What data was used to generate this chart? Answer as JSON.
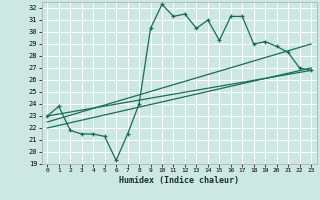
{
  "title": "",
  "xlabel": "Humidex (Indice chaleur)",
  "ylabel": "",
  "bg_color": "#cce8e0",
  "line_color": "#1a6b5a",
  "grid_color": "#ffffff",
  "xlim": [
    -0.5,
    23.5
  ],
  "ylim": [
    19,
    32.5
  ],
  "xticks": [
    0,
    1,
    2,
    3,
    4,
    5,
    6,
    7,
    8,
    9,
    10,
    11,
    12,
    13,
    14,
    15,
    16,
    17,
    18,
    19,
    20,
    21,
    22,
    23
  ],
  "yticks": [
    19,
    20,
    21,
    22,
    23,
    24,
    25,
    26,
    27,
    28,
    29,
    30,
    31,
    32
  ],
  "main_x": [
    0,
    1,
    2,
    3,
    4,
    5,
    6,
    7,
    8,
    9,
    10,
    11,
    12,
    13,
    14,
    15,
    16,
    17,
    18,
    19,
    20,
    21,
    22,
    23
  ],
  "main_y": [
    23.0,
    23.8,
    21.8,
    21.5,
    21.5,
    21.3,
    19.3,
    21.5,
    24.0,
    30.3,
    32.3,
    31.3,
    31.5,
    30.3,
    31.0,
    29.3,
    31.3,
    31.3,
    29.0,
    29.2,
    28.8,
    28.3,
    27.0,
    26.8
  ],
  "line1_x": [
    0,
    23
  ],
  "line1_y": [
    22.0,
    27.0
  ],
  "line2_x": [
    0,
    23
  ],
  "line2_y": [
    22.5,
    29.0
  ],
  "line3_x": [
    0,
    23
  ],
  "line3_y": [
    23.0,
    26.8
  ]
}
